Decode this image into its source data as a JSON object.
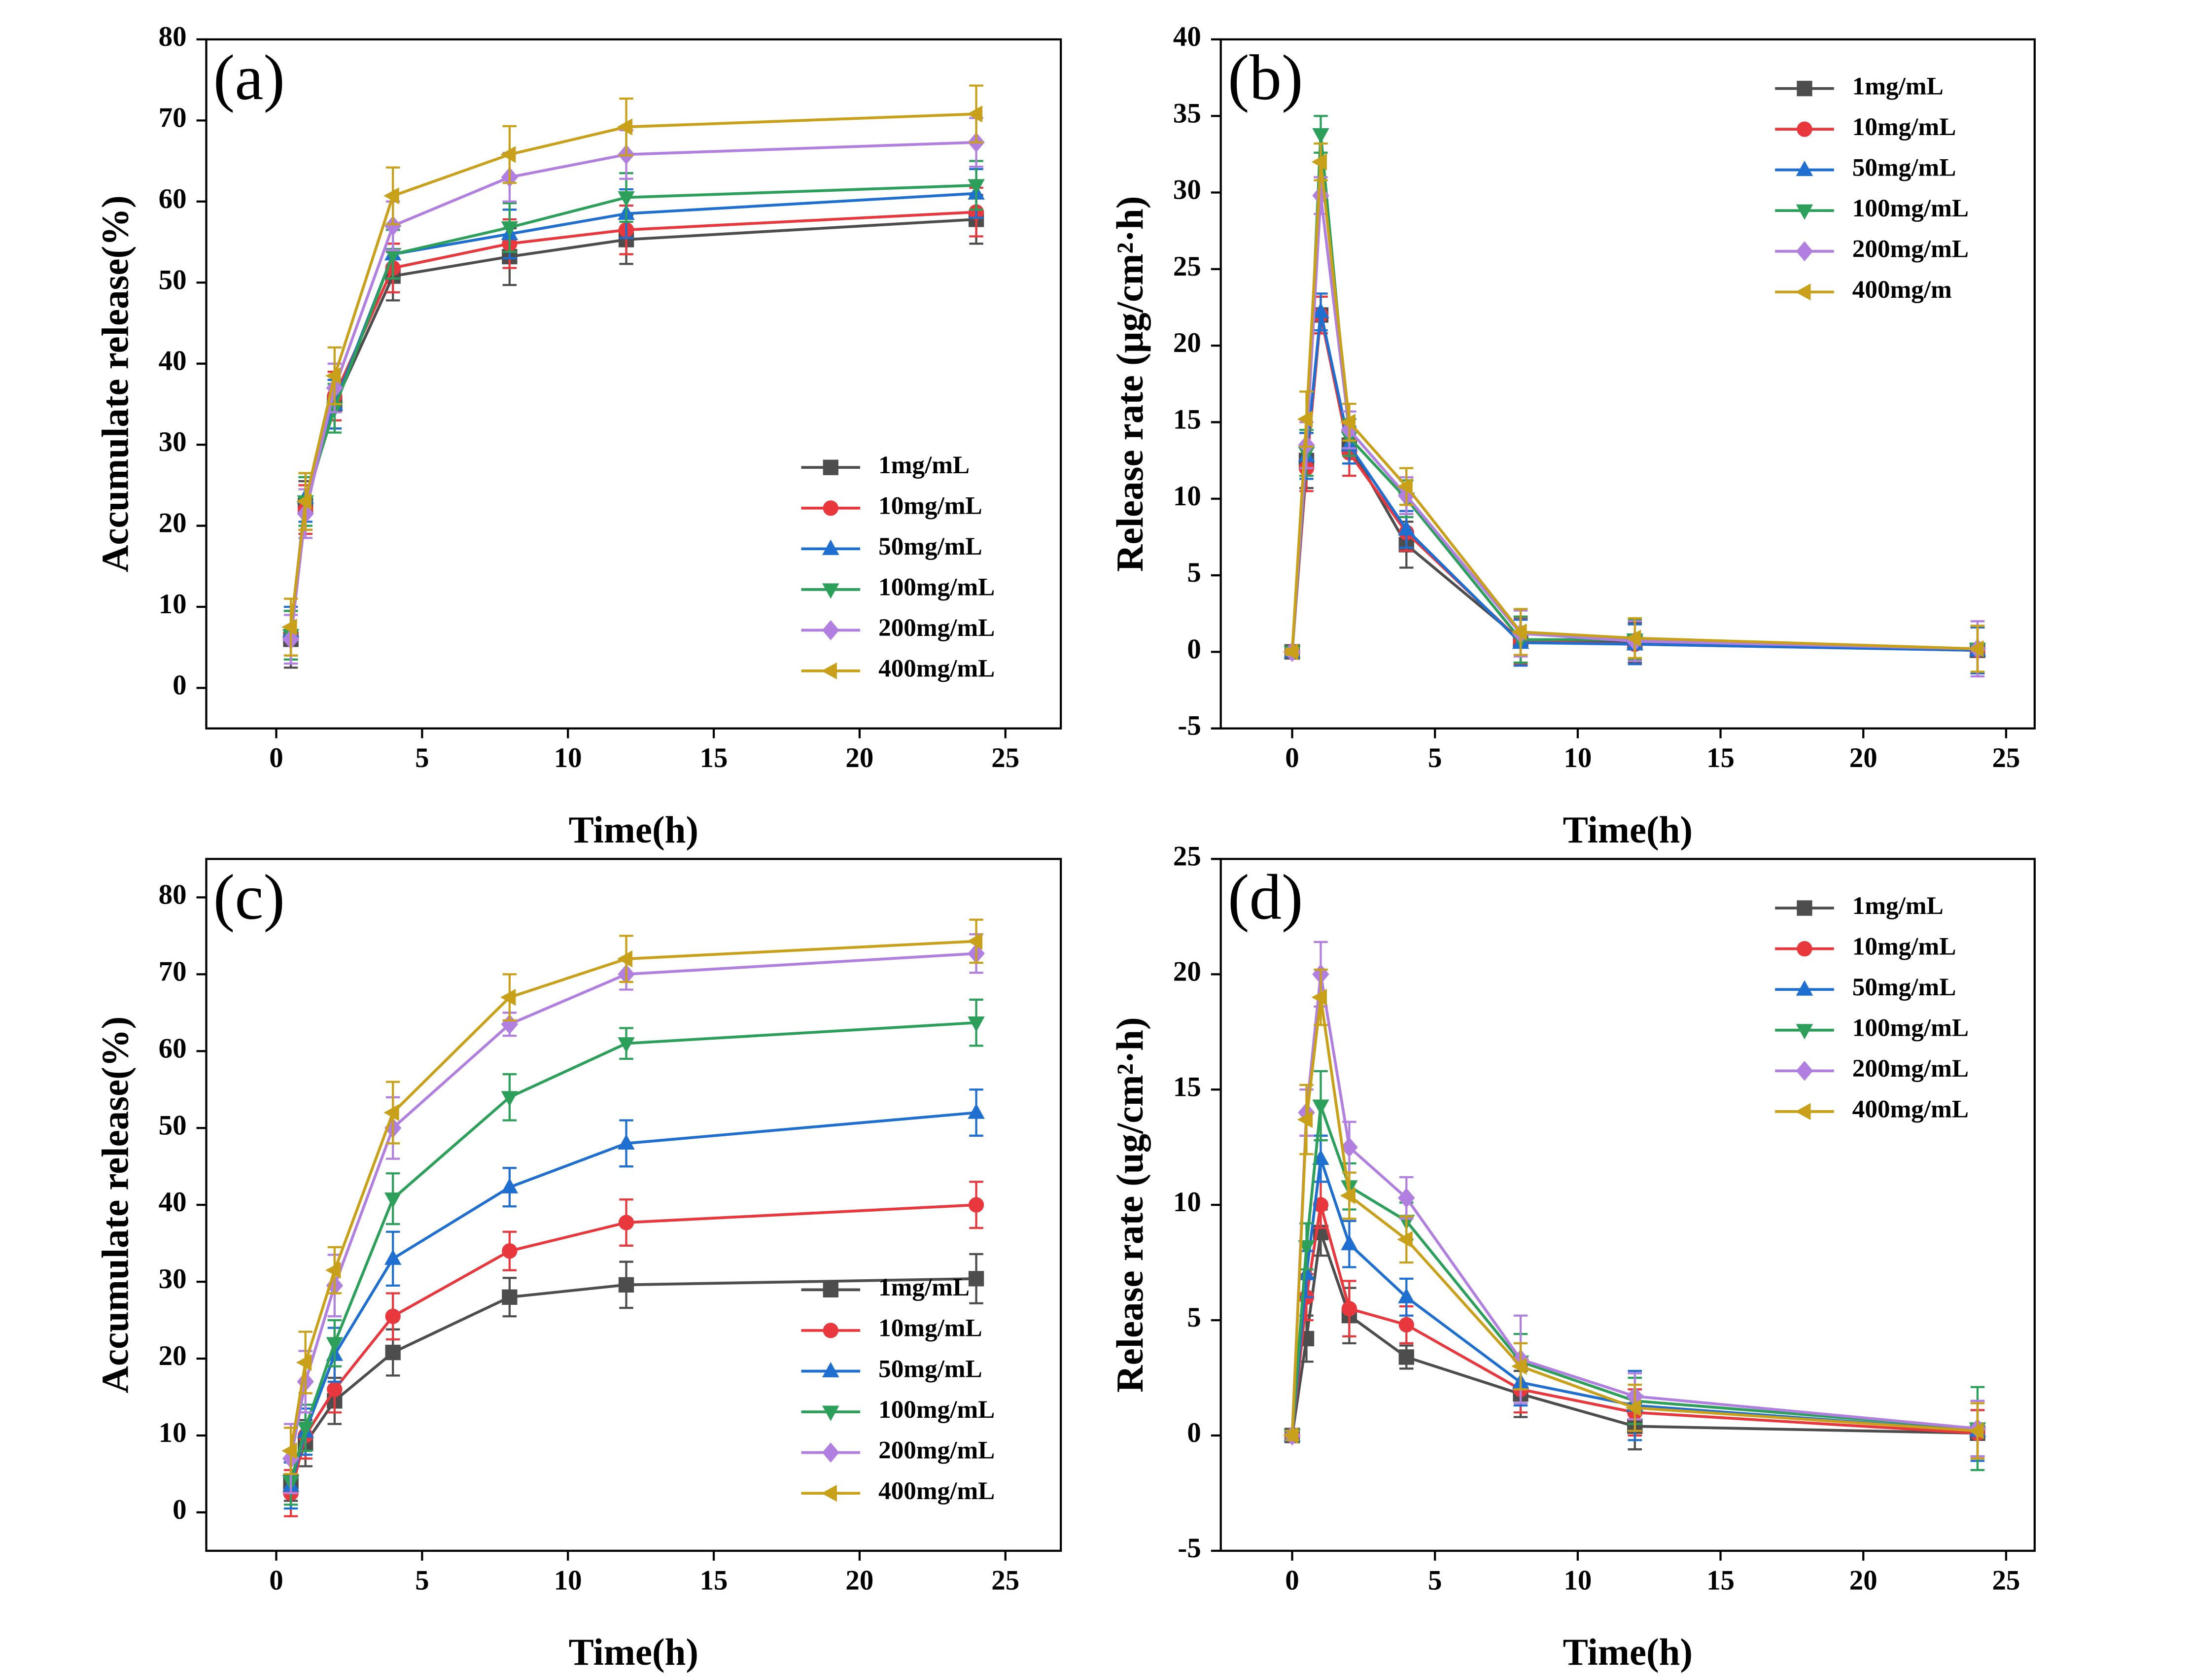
{
  "chart_data": [
    {
      "type": "line",
      "panel_label": "(a)",
      "x_label": "Time(h)",
      "y_label": "Accumulate release(%)",
      "x": [
        0.5,
        1,
        2,
        4,
        8,
        12,
        24
      ],
      "xlim": [
        -2.4,
        26.9
      ],
      "xticks": [
        0,
        5,
        10,
        15,
        20,
        25
      ],
      "ylim": [
        -5,
        80
      ],
      "yticks": [
        0,
        10,
        20,
        30,
        40,
        50,
        60,
        70,
        80
      ],
      "legend": "lower right",
      "series": [
        {
          "name": "1mg/mL",
          "color": "#4d4d4d",
          "marker": "square",
          "values": [
            6,
            22.5,
            35,
            50.8,
            53.2,
            55.3,
            57.8
          ],
          "errors": [
            3.5,
            3,
            3,
            3,
            3.5,
            3,
            3
          ]
        },
        {
          "name": "10mg/mL",
          "color": "#e8383d",
          "marker": "circle",
          "values": [
            6.5,
            22,
            36,
            51.8,
            54.8,
            56.5,
            58.7
          ],
          "errors": [
            3,
            3,
            3,
            3,
            3,
            3,
            3
          ]
        },
        {
          "name": "50mg/mL",
          "color": "#1f6fd1",
          "marker": "triangle-up",
          "values": [
            7,
            23.5,
            35,
            53.5,
            56,
            58.5,
            61
          ],
          "errors": [
            3,
            3,
            3,
            3,
            3,
            3,
            3
          ]
        },
        {
          "name": "100mg/mL",
          "color": "#2ca05a",
          "marker": "triangle-down",
          "values": [
            6.5,
            23,
            34.5,
            53.5,
            56.8,
            60.5,
            62
          ],
          "errors": [
            3,
            3,
            3,
            3,
            3,
            3,
            3
          ]
        },
        {
          "name": "200mg/mL",
          "color": "#b07fe0",
          "marker": "diamond",
          "values": [
            6,
            21.5,
            37,
            57,
            63,
            65.8,
            67.3
          ],
          "errors": [
            3,
            3,
            3,
            3,
            3,
            3,
            3
          ]
        },
        {
          "name": "400mg/mL",
          "color": "#c9a019",
          "marker": "triangle-left",
          "values": [
            7.5,
            23,
            38.5,
            60.7,
            65.8,
            69.2,
            70.8
          ],
          "errors": [
            3.5,
            3.5,
            3.5,
            3.5,
            3.5,
            3.5,
            3.5
          ]
        }
      ]
    },
    {
      "type": "line",
      "panel_label": "(b)",
      "x_label": "Time(h)",
      "y_label": "Release rate (μg/cm²·h)",
      "x": [
        0,
        0.5,
        1,
        2,
        4,
        8,
        12,
        24
      ],
      "xlim": [
        -2.5,
        26
      ],
      "xticks": [
        0,
        5,
        10,
        15,
        20,
        25
      ],
      "ylim": [
        -5,
        40
      ],
      "yticks": [
        -5,
        0,
        5,
        10,
        15,
        20,
        25,
        30,
        35,
        40
      ],
      "legend": "upper right",
      "series": [
        {
          "name": "1mg/mL",
          "color": "#4d4d4d",
          "marker": "square",
          "values": [
            0,
            12.5,
            22,
            13.5,
            7,
            0.8,
            0.6,
            0.1
          ],
          "errors": [
            0.2,
            1.8,
            1.2,
            1.2,
            1.5,
            1.5,
            1.3,
            1.5
          ]
        },
        {
          "name": "10mg/mL",
          "color": "#e8383d",
          "marker": "circle",
          "values": [
            0,
            12,
            22,
            13,
            7.8,
            0.7,
            0.5,
            0.1
          ],
          "errors": [
            0.2,
            1.5,
            1.2,
            1.5,
            1.2,
            1.5,
            1.3,
            1.5
          ]
        },
        {
          "name": "50mg/mL",
          "color": "#1f6fd1",
          "marker": "triangle-up",
          "values": [
            0,
            12.8,
            22.2,
            13.5,
            8,
            0.6,
            0.5,
            0.1
          ],
          "errors": [
            0.2,
            1.5,
            1.2,
            1.2,
            1.2,
            1.5,
            1.3,
            1.5
          ]
        },
        {
          "name": "100mg/mL",
          "color": "#2ca05a",
          "marker": "triangle-down",
          "values": [
            0,
            13,
            33.8,
            14,
            10,
            0.8,
            0.8,
            0.2
          ],
          "errors": [
            0.2,
            1.5,
            1.2,
            1.2,
            1.2,
            1.5,
            1.3,
            1.5
          ]
        },
        {
          "name": "200mg/mL",
          "color": "#b07fe0",
          "marker": "diamond",
          "values": [
            0,
            13.5,
            29.8,
            14.5,
            10.2,
            1.2,
            0.7,
            0.2
          ],
          "errors": [
            0.2,
            1.5,
            1.2,
            1.2,
            1.2,
            1.5,
            1.3,
            1.8
          ]
        },
        {
          "name": "400mg/m",
          "color": "#c9a019",
          "marker": "triangle-left",
          "values": [
            0,
            15.2,
            32,
            15,
            10.8,
            1.3,
            0.9,
            0.2
          ],
          "errors": [
            0.2,
            1.8,
            1.2,
            1.2,
            1.2,
            1.5,
            1.3,
            1.5
          ]
        }
      ]
    },
    {
      "type": "line",
      "panel_label": "(c)",
      "x_label": "Time(h)",
      "y_label": "Accumulate release(%)",
      "x": [
        0.5,
        1,
        2,
        4,
        8,
        12,
        24
      ],
      "xlim": [
        -2.4,
        26.9
      ],
      "xticks": [
        0,
        5,
        10,
        15,
        20,
        25
      ],
      "ylim": [
        -5,
        85
      ],
      "yticks": [
        0,
        10,
        20,
        30,
        40,
        50,
        60,
        70,
        80
      ],
      "legend": "lower right",
      "series": [
        {
          "name": "1mg/mL",
          "color": "#4d4d4d",
          "marker": "square",
          "values": [
            4,
            9,
            14.5,
            20.8,
            28,
            29.6,
            30.4
          ],
          "errors": [
            2.5,
            3,
            3,
            3,
            2.5,
            3,
            3.2
          ]
        },
        {
          "name": "10mg/mL",
          "color": "#e8383d",
          "marker": "circle",
          "values": [
            2.5,
            10,
            16,
            25.5,
            34,
            37.7,
            40
          ],
          "errors": [
            3,
            3,
            3,
            3,
            2.5,
            3,
            3
          ]
        },
        {
          "name": "50mg/mL",
          "color": "#1f6fd1",
          "marker": "triangle-up",
          "values": [
            3.5,
            10.5,
            20.5,
            33,
            42.3,
            48,
            52
          ],
          "errors": [
            3,
            3,
            3.5,
            3.5,
            2.5,
            3,
            3
          ]
        },
        {
          "name": "100mg/mL",
          "color": "#2ca05a",
          "marker": "triangle-down",
          "values": [
            4,
            11,
            22,
            40.8,
            54,
            61,
            63.7
          ],
          "errors": [
            3,
            3,
            3,
            3.3,
            3,
            2,
            3
          ]
        },
        {
          "name": "200mg/mL",
          "color": "#b07fe0",
          "marker": "diamond",
          "values": [
            7,
            17,
            29.5,
            50,
            63.5,
            70,
            72.7
          ],
          "errors": [
            4.5,
            4,
            4,
            4,
            1.5,
            2,
            2.5
          ]
        },
        {
          "name": "400mg/mL",
          "color": "#c9a019",
          "marker": "triangle-left",
          "values": [
            8,
            19.5,
            31.5,
            52,
            67,
            72,
            74.3
          ],
          "errors": [
            3,
            4,
            3,
            4,
            3,
            3,
            2.8
          ]
        }
      ]
    },
    {
      "type": "line",
      "panel_label": "(d)",
      "x_label": "Time(h)",
      "y_label": "Release rate (ug/cm²·h)",
      "x": [
        0,
        0.5,
        1,
        2,
        4,
        8,
        12,
        24
      ],
      "xlim": [
        -2.5,
        26
      ],
      "xticks": [
        0,
        5,
        10,
        15,
        20,
        25
      ],
      "ylim": [
        -5,
        25
      ],
      "yticks": [
        -5,
        0,
        5,
        10,
        15,
        20,
        25
      ],
      "legend": "upper right",
      "series": [
        {
          "name": "1mg/mL",
          "color": "#4d4d4d",
          "marker": "square",
          "values": [
            0,
            4.2,
            8.8,
            5.2,
            3.4,
            1.8,
            0.4,
            0.1
          ],
          "errors": [
            0.2,
            1,
            1,
            1.2,
            0.5,
            1,
            1,
            1
          ]
        },
        {
          "name": "10mg/mL",
          "color": "#e8383d",
          "marker": "circle",
          "values": [
            0,
            6,
            10,
            5.5,
            4.8,
            2,
            1,
            0.1
          ],
          "errors": [
            0.2,
            1,
            1,
            1.2,
            0.8,
            1,
            1,
            1
          ]
        },
        {
          "name": "50mg/mL",
          "color": "#1f6fd1",
          "marker": "triangle-up",
          "values": [
            0,
            7,
            12,
            8.3,
            6,
            2.3,
            1.3,
            0.2
          ],
          "errors": [
            0.2,
            1,
            1,
            1,
            0.8,
            1,
            1.5,
            1.3
          ]
        },
        {
          "name": "100mg/mL",
          "color": "#2ca05a",
          "marker": "triangle-down",
          "values": [
            0,
            8.2,
            14.3,
            10.8,
            9.3,
            3.2,
            1.5,
            0.3
          ],
          "errors": [
            0.2,
            1,
            1.5,
            1,
            0.8,
            1.2,
            1,
            1.8
          ]
        },
        {
          "name": "200mg/mL",
          "color": "#b07fe0",
          "marker": "diamond",
          "values": [
            0,
            14,
            20,
            12.5,
            10.3,
            3.3,
            1.7,
            0.3
          ],
          "errors": [
            0.2,
            1,
            1.4,
            1.1,
            0.9,
            1.9,
            1,
            1.2
          ]
        },
        {
          "name": "400mg/mL",
          "color": "#c9a019",
          "marker": "triangle-left",
          "values": [
            0,
            13.7,
            19,
            10.4,
            8.5,
            3,
            1.2,
            0.2
          ],
          "errors": [
            0.2,
            1.5,
            1.2,
            1,
            1,
            1,
            1,
            1.2
          ]
        }
      ]
    }
  ]
}
